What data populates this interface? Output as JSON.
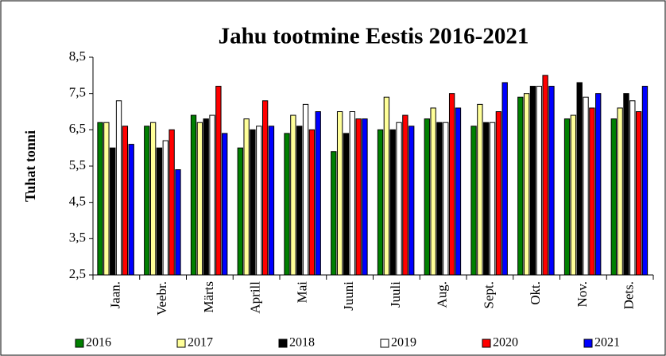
{
  "chart_data": {
    "type": "bar",
    "title": "Jahu tootmine Eestis 2016-2021",
    "y_label": "Tuhat tonni",
    "categories": [
      "Jaan.",
      "Veebr.",
      "Märts",
      "Aprill",
      "Mai",
      "Juuni",
      "Juuli",
      "Aug.",
      "Sept.",
      "Okt.",
      "Nov.",
      "Dets."
    ],
    "series": [
      {
        "name": "2016",
        "color": "#008000",
        "values": [
          6.7,
          6.6,
          6.9,
          6.0,
          6.4,
          5.9,
          6.5,
          6.8,
          6.6,
          7.4,
          6.8,
          6.8
        ]
      },
      {
        "name": "2017",
        "color": "#ffff99",
        "values": [
          6.7,
          6.7,
          6.7,
          6.8,
          6.9,
          7.0,
          7.4,
          7.1,
          7.2,
          7.5,
          6.9,
          7.1
        ]
      },
      {
        "name": "2018",
        "color": "#000000",
        "values": [
          6.0,
          6.0,
          6.8,
          6.5,
          6.6,
          6.4,
          6.5,
          6.7,
          6.7,
          7.7,
          7.8,
          7.5
        ]
      },
      {
        "name": "2019",
        "color": "#ffffff",
        "values": [
          7.3,
          6.2,
          6.9,
          6.6,
          7.2,
          7.0,
          6.7,
          6.7,
          6.7,
          7.7,
          7.4,
          7.3
        ]
      },
      {
        "name": "2020",
        "color": "#ff0000",
        "values": [
          6.6,
          6.5,
          7.7,
          7.3,
          6.5,
          6.8,
          6.9,
          7.5,
          7.0,
          8.0,
          7.1,
          7.0
        ]
      },
      {
        "name": "2021",
        "color": "#0000ff",
        "values": [
          6.1,
          5.4,
          6.4,
          6.6,
          7.0,
          6.8,
          6.6,
          7.1,
          7.8,
          7.7,
          7.5,
          7.7
        ]
      }
    ],
    "ylim": [
      2.5,
      8.5
    ],
    "yticks": [
      {
        "value": 2.5,
        "label": "2,5"
      },
      {
        "value": 3.5,
        "label": "3,5"
      },
      {
        "value": 4.5,
        "label": "4,5"
      },
      {
        "value": 5.5,
        "label": "5,5"
      },
      {
        "value": 6.5,
        "label": "6,5"
      },
      {
        "value": 7.5,
        "label": "7,5"
      },
      {
        "value": 8.5,
        "label": "8,5"
      }
    ],
    "legend": "bottom"
  }
}
